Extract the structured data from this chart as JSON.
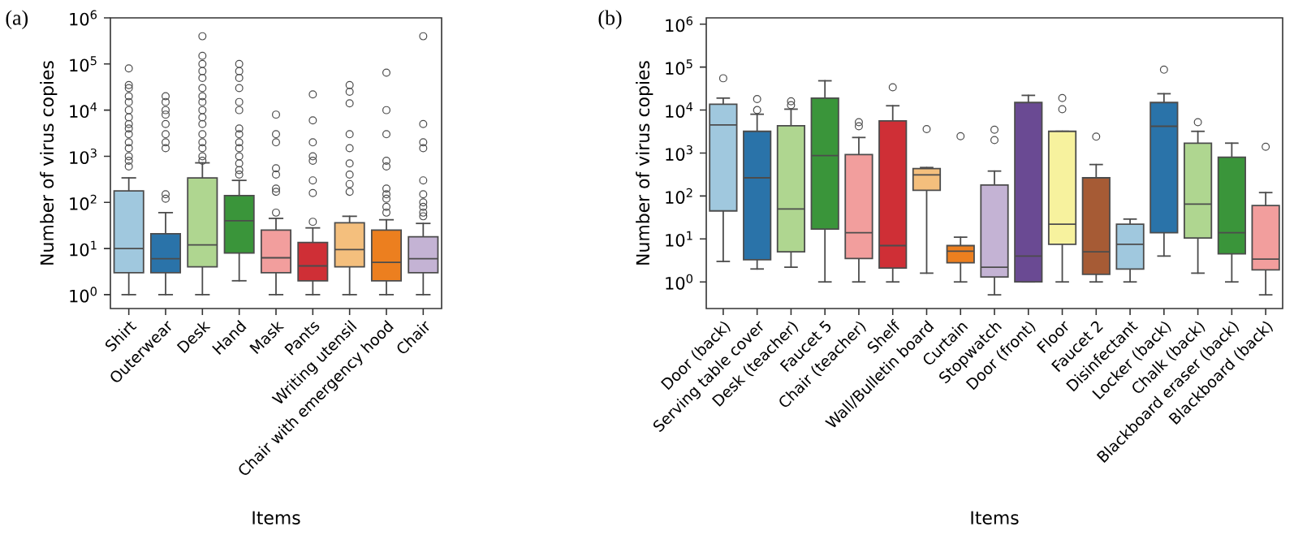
{
  "chart_data": [
    {
      "type": "box",
      "title": "(a)",
      "xlabel": "Items",
      "ylabel": "Number of virus copies",
      "log": true,
      "ylim": [
        0.5,
        1000000
      ],
      "yticks": [
        {
          "value": 1,
          "label": "10$^{0}$"
        },
        {
          "value": 10,
          "label": "10$^{1}$"
        },
        {
          "value": 100,
          "label": "10$^{2}$"
        },
        {
          "value": 1000,
          "label": "10$^{3}$"
        },
        {
          "value": 10000,
          "label": "10$^{4}$"
        },
        {
          "value": 100000,
          "label": "10$^{5}$"
        },
        {
          "value": 1000000,
          "label": "10$^{6}$"
        }
      ],
      "categories": [
        "Shirt",
        "Outerwear",
        "Desk",
        "Hand",
        "Mask",
        "Pants",
        "Writing utensil",
        "Chair with emergency hood",
        "Chair"
      ],
      "colors": [
        "#a0c8de",
        "#2a73a9",
        "#afd690",
        "#3a953a",
        "#f29e9d",
        "#cf2f36",
        "#f4bf7d",
        "#ec7f1f",
        "#c4b3d4"
      ],
      "boxes": [
        {
          "low": 1,
          "q1": 3,
          "median": 10,
          "q3": 178,
          "high": 340,
          "outliers": [
            600,
            800,
            1000,
            1500,
            2000,
            3000,
            4000,
            5000,
            7000,
            10000,
            15000,
            20000,
            30000,
            35000,
            80000
          ]
        },
        {
          "low": 1,
          "q1": 3,
          "median": 6,
          "q3": 21,
          "high": 60,
          "outliers": [
            120,
            150,
            1500,
            2000,
            3000,
            5000,
            8000,
            10000,
            15000,
            20000
          ]
        },
        {
          "low": 1,
          "q1": 4,
          "median": 12,
          "q3": 340,
          "high": 720,
          "outliers": [
            800,
            1000,
            1500,
            2000,
            3000,
            5000,
            7000,
            10000,
            15000,
            20000,
            30000,
            50000,
            70000,
            100000,
            150000,
            400000
          ]
        },
        {
          "low": 2,
          "q1": 8,
          "median": 40,
          "q3": 140,
          "high": 300,
          "outliers": [
            400,
            500,
            700,
            1000,
            1500,
            2000,
            3000,
            4000,
            10000,
            15000,
            30000,
            50000,
            70000,
            100000
          ]
        },
        {
          "low": 1,
          "q1": 3,
          "median": 6.3,
          "q3": 25,
          "high": 45,
          "outliers": [
            60,
            170,
            200,
            400,
            550,
            2000,
            3000,
            8000
          ]
        },
        {
          "low": 1,
          "q1": 2,
          "median": 4.2,
          "q3": 13.5,
          "high": 28,
          "outliers": [
            38,
            160,
            300,
            800,
            1000,
            2000,
            6000,
            22000
          ]
        },
        {
          "low": 1,
          "q1": 4,
          "median": 9.5,
          "q3": 36,
          "high": 50,
          "outliers": [
            170,
            250,
            400,
            700,
            1500,
            3000,
            14000,
            25000,
            35000
          ]
        },
        {
          "low": 1,
          "q1": 2,
          "median": 5,
          "q3": 25,
          "high": 42,
          "outliers": [
            60,
            80,
            120,
            150,
            200,
            600,
            800,
            3000,
            10000,
            65000
          ]
        },
        {
          "low": 1,
          "q1": 3,
          "median": 6,
          "q3": 18,
          "high": 35,
          "outliers": [
            50,
            60,
            80,
            100,
            150,
            300,
            1500,
            2000,
            5000,
            400000
          ]
        }
      ]
    },
    {
      "type": "box",
      "title": "(b)",
      "xlabel": "Items",
      "ylabel": "Number of virus copies",
      "log": true,
      "ylim": [
        0.24,
        1400000
      ],
      "yticks": [
        {
          "value": 1,
          "label": "10$^{0}$"
        },
        {
          "value": 10,
          "label": "10$^{1}$"
        },
        {
          "value": 100,
          "label": "10$^{2}$"
        },
        {
          "value": 1000,
          "label": "10$^{3}$"
        },
        {
          "value": 10000,
          "label": "10$^{4}$"
        },
        {
          "value": 100000,
          "label": "10$^{5}$"
        },
        {
          "value": 1000000,
          "label": "10$^{6}$"
        }
      ],
      "categories": [
        "Door (back)",
        "Serving table cover",
        "Desk (teacher)",
        "Faucet 5",
        "Chair (teacher)",
        "Shelf",
        "Wall/Bulletin board",
        "Curtain",
        "Stopwatch",
        "Door (front)",
        "Floor",
        "Faucet 2",
        "Disinfectant",
        "Locker (back)",
        "Chalk (back)",
        "Blackboard eraser (back)",
        "Blackboard (back)"
      ],
      "colors": [
        "#a0c8de",
        "#2a73a9",
        "#afd690",
        "#3a953a",
        "#f29e9d",
        "#cf2f36",
        "#f4bf7d",
        "#ec7f1f",
        "#c4b3d4",
        "#6a4a93",
        "#f7f29e",
        "#a65b35",
        "#a0c8de",
        "#2a73a9",
        "#afd690",
        "#3a953a",
        "#f29e9d"
      ],
      "boxes": [
        {
          "low": 3,
          "q1": 45,
          "median": 4500,
          "q3": 13700,
          "high": 19000,
          "outliers": [
            55000
          ]
        },
        {
          "low": 2,
          "q1": 3.3,
          "median": 265,
          "q3": 3200,
          "high": 8000,
          "outliers": [
            10000,
            18000
          ]
        },
        {
          "low": 2.2,
          "q1": 5,
          "median": 50,
          "q3": 4300,
          "high": 10500,
          "outliers": [
            13000,
            16000
          ]
        },
        {
          "low": 1,
          "q1": 17,
          "median": 870,
          "q3": 19000,
          "high": 48000
        },
        {
          "low": 1,
          "q1": 3.5,
          "median": 14,
          "q3": 920,
          "high": 2300,
          "outliers": [
            4200,
            5200
          ]
        },
        {
          "low": 1,
          "q1": 2.1,
          "median": 7,
          "q3": 5600,
          "high": 12600,
          "outliers": [
            34000
          ]
        },
        {
          "low": 1.6,
          "q1": 136,
          "median": 310,
          "q3": 435,
          "high": 460,
          "outliers": [
            3600
          ]
        },
        {
          "low": 1,
          "q1": 2.8,
          "median": 5.2,
          "q3": 7,
          "high": 11,
          "outliers": [
            2460
          ]
        },
        {
          "low": 0.5,
          "q1": 1.3,
          "median": 2.2,
          "q3": 180,
          "high": 380,
          "outliers": [
            2000,
            3500
          ]
        },
        {
          "low": 1,
          "q1": 1,
          "median": 4,
          "q3": 15000,
          "high": 22000
        },
        {
          "low": 1,
          "q1": 7.5,
          "median": 22,
          "q3": 3200,
          "high": 3200,
          "outliers": [
            10500,
            19000
          ]
        },
        {
          "low": 1,
          "q1": 1.5,
          "median": 5,
          "q3": 265,
          "high": 540,
          "outliers": [
            2400
          ]
        },
        {
          "low": 1,
          "q1": 2,
          "median": 7.5,
          "q3": 22,
          "high": 29
        },
        {
          "low": 4,
          "q1": 14,
          "median": 4200,
          "q3": 15000,
          "high": 24000,
          "outliers": [
            87000
          ]
        },
        {
          "low": 1.6,
          "q1": 10.5,
          "median": 65,
          "q3": 1700,
          "high": 3200,
          "outliers": [
            5200
          ]
        },
        {
          "low": 1,
          "q1": 4.5,
          "median": 14,
          "q3": 800,
          "high": 1700
        },
        {
          "low": 0.5,
          "q1": 1.9,
          "median": 3.4,
          "q3": 60,
          "high": 120,
          "outliers": [
            1400
          ]
        }
      ]
    }
  ]
}
